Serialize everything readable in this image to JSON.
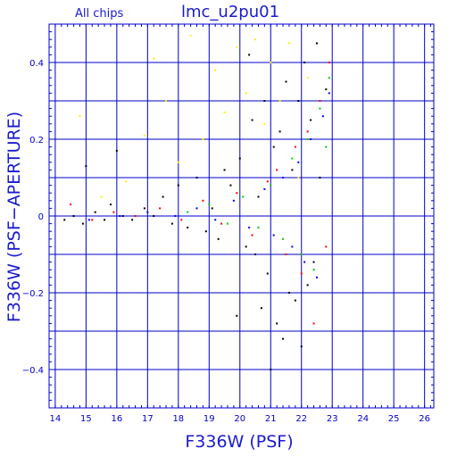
{
  "chart_data": {
    "type": "scatter",
    "title": "lmc_u2pu01",
    "subtitle": "All chips",
    "xlabel": "F336W (PSF)",
    "ylabel": "F336W (PSF−APERTURE)",
    "xlim": [
      13.8,
      26.3
    ],
    "ylim": [
      -0.5,
      0.5
    ],
    "x_ticks": [
      "14",
      "15",
      "16",
      "17",
      "18",
      "19",
      "20",
      "21",
      "22",
      "23",
      "24",
      "25",
      "26"
    ],
    "y_ticks": [
      "−0.4",
      "−0.2",
      "0",
      "0.2",
      "0.4"
    ],
    "grid": true,
    "series": [
      {
        "color": "#000000",
        "points": [
          [
            14.3,
            -0.01
          ],
          [
            14.6,
            0.0
          ],
          [
            14.9,
            -0.02
          ],
          [
            15.0,
            0.13
          ],
          [
            15.3,
            0.01
          ],
          [
            15.6,
            -0.01
          ],
          [
            15.8,
            0.03
          ],
          [
            16.0,
            0.17
          ],
          [
            16.2,
            0.0
          ],
          [
            16.5,
            -0.01
          ],
          [
            16.9,
            0.02
          ],
          [
            17.2,
            0.0
          ],
          [
            17.5,
            0.05
          ],
          [
            17.8,
            -0.02
          ],
          [
            18.0,
            0.08
          ],
          [
            18.3,
            -0.03
          ],
          [
            18.6,
            0.1
          ],
          [
            18.9,
            -0.04
          ],
          [
            19.1,
            0.02
          ],
          [
            19.3,
            -0.06
          ],
          [
            19.5,
            0.12
          ],
          [
            19.7,
            0.08
          ],
          [
            19.9,
            -0.26
          ],
          [
            20.0,
            0.15
          ],
          [
            20.2,
            -0.08
          ],
          [
            20.3,
            0.42
          ],
          [
            20.4,
            0.25
          ],
          [
            20.5,
            -0.1
          ],
          [
            20.6,
            0.05
          ],
          [
            20.7,
            -0.24
          ],
          [
            20.8,
            0.3
          ],
          [
            20.9,
            -0.15
          ],
          [
            21.0,
            -0.4
          ],
          [
            21.1,
            0.18
          ],
          [
            21.2,
            -0.28
          ],
          [
            21.3,
            0.22
          ],
          [
            21.4,
            -0.32
          ],
          [
            21.5,
            0.35
          ],
          [
            21.6,
            -0.2
          ],
          [
            21.7,
            0.12
          ],
          [
            21.8,
            -0.22
          ],
          [
            21.9,
            0.3
          ],
          [
            22.0,
            -0.34
          ],
          [
            22.1,
            0.4
          ],
          [
            22.2,
            -0.18
          ],
          [
            22.3,
            0.25
          ],
          [
            22.4,
            -0.12
          ],
          [
            22.5,
            0.45
          ],
          [
            22.6,
            0.1
          ],
          [
            22.8,
            0.33
          ]
        ]
      },
      {
        "color": "#ff0000",
        "points": [
          [
            14.5,
            0.03
          ],
          [
            15.2,
            -0.01
          ],
          [
            15.9,
            0.01
          ],
          [
            16.6,
            0.0
          ],
          [
            17.4,
            0.02
          ],
          [
            18.1,
            -0.01
          ],
          [
            18.8,
            0.04
          ],
          [
            19.4,
            -0.02
          ],
          [
            19.9,
            0.06
          ],
          [
            20.4,
            -0.05
          ],
          [
            20.9,
            0.09
          ],
          [
            21.2,
            0.12
          ],
          [
            21.5,
            -0.1
          ],
          [
            21.8,
            0.18
          ],
          [
            22.0,
            -0.15
          ],
          [
            22.2,
            0.22
          ],
          [
            22.4,
            -0.28
          ],
          [
            22.6,
            0.3
          ],
          [
            22.8,
            -0.08
          ],
          [
            22.9,
            0.4
          ]
        ]
      },
      {
        "color": "#00cc00",
        "points": [
          [
            18.3,
            0.01
          ],
          [
            19.0,
            0.03
          ],
          [
            19.6,
            -0.02
          ],
          [
            20.1,
            0.05
          ],
          [
            20.6,
            -0.03
          ],
          [
            21.0,
            0.08
          ],
          [
            21.4,
            -0.06
          ],
          [
            21.7,
            0.15
          ],
          [
            22.0,
            -0.1
          ],
          [
            22.2,
            0.2
          ],
          [
            22.4,
            -0.14
          ],
          [
            22.6,
            0.28
          ],
          [
            22.8,
            0.18
          ],
          [
            22.9,
            0.36
          ]
        ]
      },
      {
        "color": "#0000ff",
        "points": [
          [
            15.1,
            -0.01
          ],
          [
            16.1,
            0.0
          ],
          [
            17.0,
            0.01
          ],
          [
            17.9,
            0.0
          ],
          [
            18.6,
            0.02
          ],
          [
            19.2,
            -0.01
          ],
          [
            19.8,
            0.04
          ],
          [
            20.3,
            -0.03
          ],
          [
            20.8,
            0.07
          ],
          [
            21.1,
            -0.05
          ],
          [
            21.4,
            0.1
          ],
          [
            21.7,
            -0.08
          ],
          [
            21.9,
            0.14
          ],
          [
            22.1,
            -0.12
          ],
          [
            22.3,
            0.2
          ],
          [
            22.5,
            -0.16
          ],
          [
            22.7,
            0.26
          ],
          [
            22.9,
            0.32
          ]
        ]
      },
      {
        "color": "#ffee00",
        "points": [
          [
            14.8,
            0.26
          ],
          [
            15.5,
            0.05
          ],
          [
            16.3,
            0.09
          ],
          [
            16.9,
            0.21
          ],
          [
            17.2,
            0.41
          ],
          [
            17.6,
            0.3
          ],
          [
            18.0,
            0.14
          ],
          [
            18.4,
            0.47
          ],
          [
            18.8,
            0.2
          ],
          [
            19.2,
            0.38
          ],
          [
            19.5,
            0.27
          ],
          [
            19.9,
            0.44
          ],
          [
            20.2,
            0.32
          ],
          [
            20.5,
            0.46
          ],
          [
            20.8,
            0.24
          ],
          [
            21.0,
            0.4
          ],
          [
            21.3,
            0.3
          ],
          [
            21.6,
            0.45
          ],
          [
            21.9,
            0.1
          ],
          [
            22.2,
            0.36
          ]
        ]
      }
    ]
  }
}
